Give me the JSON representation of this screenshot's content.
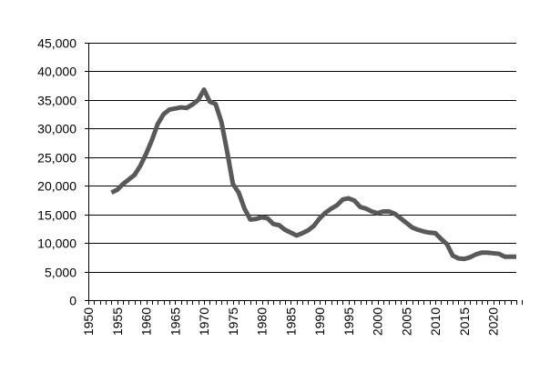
{
  "chart_data": {
    "type": "line",
    "title": "",
    "xlabel": "",
    "ylabel": "",
    "xlim": [
      1950,
      2024
    ],
    "ylim": [
      0,
      45000
    ],
    "x_tick_labels": [
      "1950",
      "1955",
      "1960",
      "1965",
      "1970",
      "1975",
      "1980",
      "1985",
      "1990",
      "1995",
      "2000",
      "2005",
      "2010",
      "2015",
      "2020"
    ],
    "y_tick_labels": [
      "0",
      "5,000",
      "10,000",
      "15,000",
      "20,000",
      "25,000",
      "30,000",
      "35,000",
      "40,000",
      "45,000"
    ],
    "grid": true,
    "legend": "none",
    "line_color": "#595959",
    "series": [
      {
        "x": [
          1954,
          1955,
          1956,
          1957,
          1958,
          1959,
          1960,
          1961,
          1962,
          1963,
          1964,
          1965,
          1966,
          1967,
          1968,
          1969,
          1970,
          1971,
          1972,
          1973,
          1974,
          1975,
          1976,
          1977,
          1978,
          1979,
          1980,
          1981,
          1982,
          1983,
          1984,
          1985,
          1986,
          1987,
          1988,
          1989,
          1990,
          1991,
          1992,
          1993,
          1994,
          1995,
          1996,
          1997,
          1998,
          1999,
          2000,
          2001,
          2002,
          2003,
          2004,
          2005,
          2006,
          2007,
          2008,
          2009,
          2010,
          2011,
          2012,
          2013,
          2014,
          2015,
          2016,
          2017,
          2018,
          2019,
          2020,
          2021,
          2022,
          2023,
          2024
        ],
        "values": [
          18800,
          19300,
          20300,
          21100,
          21900,
          23500,
          25600,
          28000,
          30800,
          32500,
          33300,
          33500,
          33700,
          33600,
          34200,
          35000,
          36800,
          34700,
          34300,
          31200,
          26000,
          20300,
          18800,
          16000,
          14100,
          14200,
          14500,
          14300,
          13300,
          13100,
          12300,
          11800,
          11300,
          11700,
          12200,
          13000,
          14300,
          15300,
          16000,
          16600,
          17600,
          17800,
          17400,
          16300,
          16000,
          15500,
          15200,
          15500,
          15500,
          15100,
          14300,
          13500,
          12700,
          12300,
          12000,
          11800,
          11700,
          10700,
          9800,
          7800,
          7300,
          7200,
          7500,
          8000,
          8300,
          8300,
          8200,
          8100,
          7600,
          7600,
          7600
        ]
      }
    ]
  }
}
